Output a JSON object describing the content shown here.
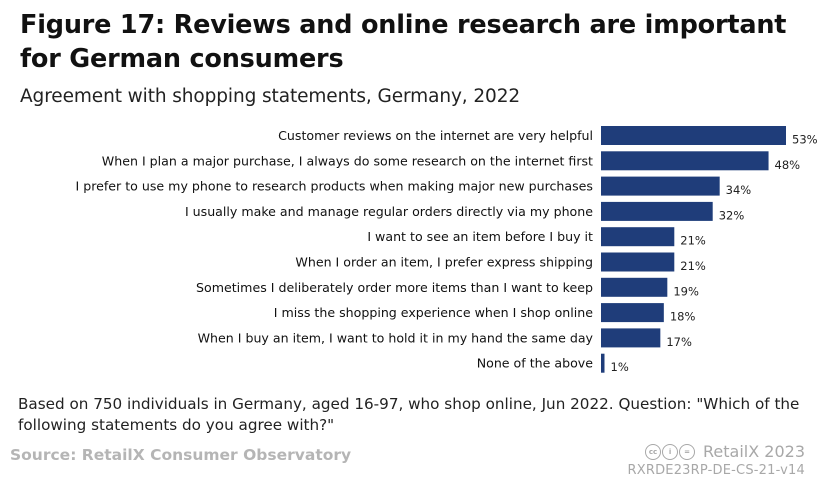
{
  "header": {
    "title": "Figure 17: Reviews and online research are important for German consumers",
    "subtitle": "Agreement with shopping statements, Germany, 2022"
  },
  "footer": {
    "note": "Based on 750 individuals in Germany, aged 16-97, who shop online, Jun 2022. Question: \"Which of the following statements do you agree with?\"",
    "source": "Source: RetailX Consumer Observatory",
    "brand": "RetailX 2023",
    "code": "RXRDE23RP-DE-CS-21-v14",
    "license_icons": [
      "cc-icon",
      "attribution-icon",
      "noderivs-icon"
    ]
  },
  "chart_data": {
    "type": "bar",
    "orientation": "horizontal",
    "title": "Figure 17: Reviews and online research are important for German consumers",
    "subtitle": "Agreement with shopping statements, Germany, 2022",
    "categories": [
      "Customer reviews on the internet are very helpful",
      "When I plan a major purchase, I always do some research on the internet first",
      "I prefer to use my phone to research products when making major new purchases",
      "I usually make and manage regular orders directly via my phone",
      "I want to see an item before I buy it",
      "When I order an item, I prefer express shipping",
      "Sometimes I deliberately order more items than I want to keep",
      "I miss the shopping experience when I shop online",
      "When I buy an item, I want to hold it in my hand the same day",
      "None of the above"
    ],
    "values": [
      53,
      48,
      34,
      32,
      21,
      21,
      19,
      18,
      17,
      1
    ],
    "value_labels": [
      "53%",
      "48%",
      "34%",
      "32%",
      "21%",
      "21%",
      "19%",
      "18%",
      "17%",
      "1%"
    ],
    "unit": "%",
    "xlim": [
      0,
      53
    ],
    "bar_color": "#1f3d7a",
    "xlabel": "",
    "ylabel": "",
    "grid": false,
    "legend": "none"
  }
}
